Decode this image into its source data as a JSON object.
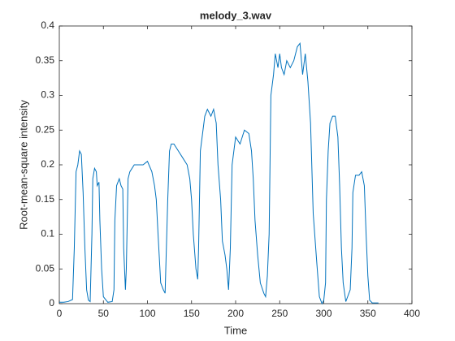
{
  "chart_data": {
    "type": "line",
    "title": "melody_3.wav",
    "x_label": "Time",
    "y_label": "Root-mean-square intensity",
    "x": [
      0,
      5,
      10,
      15,
      17,
      19,
      21,
      23,
      25,
      27,
      29,
      31,
      33,
      35,
      37,
      38,
      40,
      42,
      43,
      45,
      46,
      48,
      50,
      55,
      60,
      62,
      63,
      65,
      68,
      70,
      72,
      73,
      75,
      76,
      78,
      80,
      85,
      90,
      95,
      100,
      105,
      108,
      110,
      112,
      115,
      118,
      120,
      123,
      125,
      127,
      130,
      135,
      140,
      145,
      148,
      150,
      152,
      155,
      157,
      158,
      160,
      163,
      165,
      168,
      172,
      175,
      178,
      180,
      183,
      185,
      188,
      190,
      192,
      194,
      196,
      200,
      205,
      210,
      215,
      218,
      220,
      222,
      225,
      228,
      232,
      234,
      236,
      238,
      240,
      243,
      245,
      248,
      250,
      252,
      255,
      258,
      262,
      266,
      270,
      273,
      276,
      279,
      282,
      285,
      288,
      292,
      295,
      298,
      300,
      302,
      303,
      305,
      307,
      310,
      313,
      316,
      318,
      320,
      322,
      325,
      330,
      332,
      333,
      336,
      340,
      343,
      346,
      348,
      350,
      352,
      355,
      362
    ],
    "series": [
      {
        "color": "#0072bd",
        "values": [
          0.002,
          0.002,
          0.003,
          0.006,
          0.08,
          0.19,
          0.2,
          0.22,
          0.215,
          0.16,
          0.08,
          0.02,
          0.005,
          0.003,
          0.1,
          0.18,
          0.195,
          0.19,
          0.17,
          0.175,
          0.12,
          0.05,
          0.01,
          0.002,
          0.003,
          0.02,
          0.12,
          0.17,
          0.18,
          0.17,
          0.165,
          0.08,
          0.02,
          0.05,
          0.18,
          0.19,
          0.2,
          0.2,
          0.2,
          0.205,
          0.19,
          0.17,
          0.15,
          0.1,
          0.03,
          0.02,
          0.015,
          0.15,
          0.22,
          0.23,
          0.23,
          0.22,
          0.21,
          0.2,
          0.18,
          0.15,
          0.1,
          0.05,
          0.035,
          0.08,
          0.22,
          0.25,
          0.27,
          0.28,
          0.27,
          0.28,
          0.26,
          0.2,
          0.15,
          0.09,
          0.07,
          0.05,
          0.02,
          0.08,
          0.2,
          0.24,
          0.23,
          0.25,
          0.245,
          0.22,
          0.18,
          0.12,
          0.07,
          0.03,
          0.015,
          0.01,
          0.04,
          0.1,
          0.3,
          0.33,
          0.36,
          0.34,
          0.36,
          0.34,
          0.33,
          0.35,
          0.34,
          0.35,
          0.37,
          0.375,
          0.33,
          0.36,
          0.32,
          0.26,
          0.13,
          0.06,
          0.01,
          0.0,
          0.005,
          0.03,
          0.15,
          0.22,
          0.26,
          0.27,
          0.27,
          0.24,
          0.17,
          0.08,
          0.03,
          0.003,
          0.02,
          0.08,
          0.16,
          0.185,
          0.185,
          0.19,
          0.17,
          0.1,
          0.04,
          0.005,
          0.001,
          0.001
        ]
      }
    ],
    "xlim": [
      0,
      400
    ],
    "xticks": [
      0,
      50,
      100,
      150,
      200,
      250,
      300,
      350,
      400
    ],
    "ylim": [
      0,
      0.4
    ],
    "yticks": [
      0,
      0.05,
      0.1,
      0.15,
      0.2,
      0.25,
      0.3,
      0.35,
      0.4
    ]
  }
}
